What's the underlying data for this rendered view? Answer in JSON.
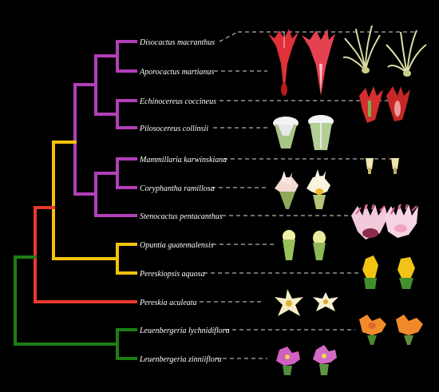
{
  "figure": {
    "background": "#000000",
    "line_color_white": "#dcdcdc",
    "colors": {
      "magenta": "#b23fb8",
      "yellow": "#f4c20d",
      "red": "#e8392b",
      "green": "#1e7d16"
    }
  },
  "taxa": [
    {
      "id": "disocactus",
      "label": "Disocactus macranthus",
      "clade": "magenta"
    },
    {
      "id": "aporocactus",
      "label": "Aporocactus martianus",
      "clade": "magenta"
    },
    {
      "id": "echinocereus",
      "label": "Echinocereus coccineus",
      "clade": "magenta"
    },
    {
      "id": "pilosocereus",
      "label": "Pilosocereus collinsii",
      "clade": "magenta"
    },
    {
      "id": "mammillaria",
      "label": "Mammillaria karwinskiana",
      "clade": "magenta"
    },
    {
      "id": "coryphantha",
      "label": "Coryphantha ramillosa",
      "clade": "magenta"
    },
    {
      "id": "stenocactus",
      "label": "Stenocactus pentacanthus",
      "clade": "magenta"
    },
    {
      "id": "opuntia",
      "label": "Opuntia guatemalensis",
      "clade": "yellow"
    },
    {
      "id": "pereskiopsis",
      "label": "Pereskiopsis aquosa",
      "clade": "yellow"
    },
    {
      "id": "pereskia",
      "label": "Pereskia aculeata",
      "clade": "red"
    },
    {
      "id": "leuenbergeria_l",
      "label": "Leuenbergeria lychnidiflora",
      "clade": "green"
    },
    {
      "id": "leuenbergeria_z",
      "label": "Leuenbergeria zinniiflora",
      "clade": "green"
    }
  ]
}
